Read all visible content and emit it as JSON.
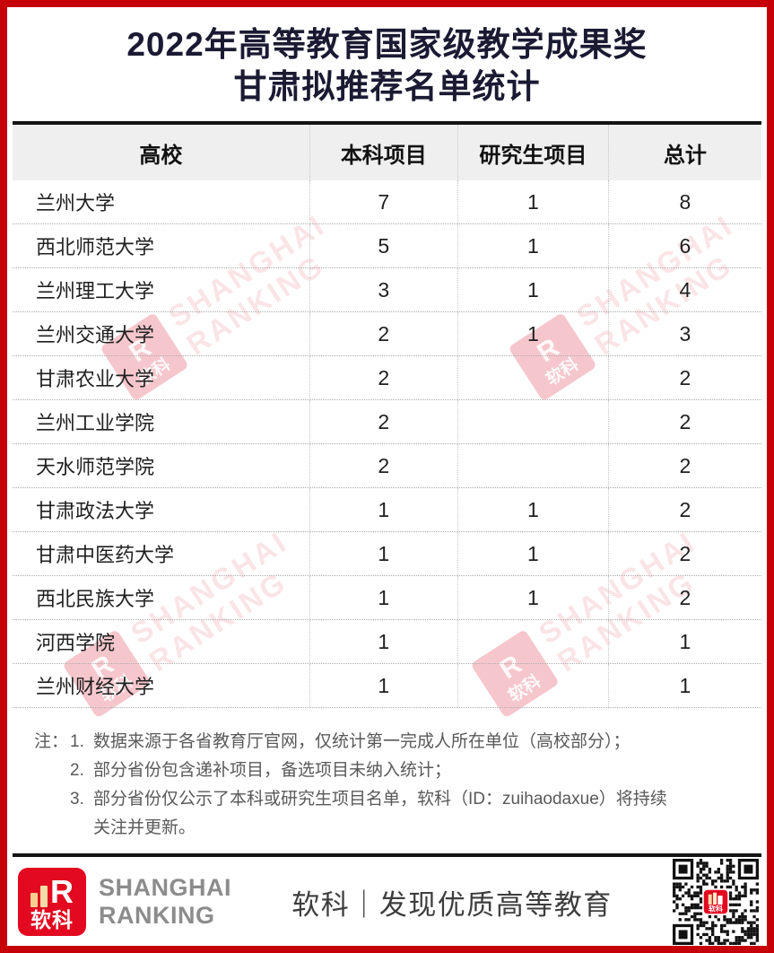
{
  "title": {
    "line1": "2022年高等教育国家级教学成果奖",
    "line2": "甘肃拟推荐名单统计"
  },
  "table": {
    "columns": [
      "高校",
      "本科项目",
      "研究生项目",
      "总计"
    ],
    "rows": [
      {
        "school": "兰州大学",
        "undergrad": "7",
        "graduate": "1",
        "total": "8"
      },
      {
        "school": "西北师范大学",
        "undergrad": "5",
        "graduate": "1",
        "total": "6"
      },
      {
        "school": "兰州理工大学",
        "undergrad": "3",
        "graduate": "1",
        "total": "4"
      },
      {
        "school": "兰州交通大学",
        "undergrad": "2",
        "graduate": "1",
        "total": "3"
      },
      {
        "school": "甘肃农业大学",
        "undergrad": "2",
        "graduate": "",
        "total": "2"
      },
      {
        "school": "兰州工业学院",
        "undergrad": "2",
        "graduate": "",
        "total": "2"
      },
      {
        "school": "天水师范学院",
        "undergrad": "2",
        "graduate": "",
        "total": "2"
      },
      {
        "school": "甘肃政法大学",
        "undergrad": "1",
        "graduate": "1",
        "total": "2"
      },
      {
        "school": "甘肃中医药大学",
        "undergrad": "1",
        "graduate": "1",
        "total": "2"
      },
      {
        "school": "西北民族大学",
        "undergrad": "1",
        "graduate": "1",
        "total": "2"
      },
      {
        "school": "河西学院",
        "undergrad": "1",
        "graduate": "",
        "total": "1"
      },
      {
        "school": "兰州财经大学",
        "undergrad": "1",
        "graduate": "",
        "total": "1"
      }
    ]
  },
  "chart_data": {
    "type": "table",
    "title": "2022年高等教育国家级教学成果奖甘肃拟推荐名单统计",
    "columns": [
      "高校",
      "本科项目",
      "研究生项目",
      "总计"
    ],
    "rows": [
      [
        "兰州大学",
        7,
        1,
        8
      ],
      [
        "西北师范大学",
        5,
        1,
        6
      ],
      [
        "兰州理工大学",
        3,
        1,
        4
      ],
      [
        "兰州交通大学",
        2,
        1,
        3
      ],
      [
        "甘肃农业大学",
        2,
        null,
        2
      ],
      [
        "兰州工业学院",
        2,
        null,
        2
      ],
      [
        "天水师范学院",
        2,
        null,
        2
      ],
      [
        "甘肃政法大学",
        1,
        1,
        2
      ],
      [
        "甘肃中医药大学",
        1,
        1,
        2
      ],
      [
        "西北民族大学",
        1,
        1,
        2
      ],
      [
        "河西学院",
        1,
        null,
        1
      ],
      [
        "兰州财经大学",
        1,
        null,
        1
      ]
    ]
  },
  "notes": {
    "label": "注：",
    "lines": [
      {
        "num": "1.",
        "text": "数据来源于各省教育厅官网，仅统计第一完成人所在单位（高校部分）；"
      },
      {
        "num": "2.",
        "text": "部分省份包含递补项目，备选项目未纳入统计；"
      },
      {
        "num": "3.",
        "text": "部分省份仅公示了本科或研究生项目名单，软科（ID：zuihaodaxue）将持续"
      },
      {
        "num": "",
        "text": "关注并更新。"
      }
    ]
  },
  "footer": {
    "logo_text": "软科",
    "logo_r": "R",
    "brand_line1": "SHANGHAI",
    "brand_line2": "RANKING",
    "slogan": "软科｜发现优质高等教育"
  },
  "watermark": {
    "logo_r": "R",
    "logo_text": "软科",
    "line1": "SHANGHAI",
    "line2": "RANKING"
  },
  "colors": {
    "border_red": "#C70008",
    "logo_red": "#E30920",
    "header_bg": "#EFEFEF",
    "title_color": "#1A1A33",
    "note_gray": "#595959",
    "brand_gray": "#8C8C8C"
  }
}
